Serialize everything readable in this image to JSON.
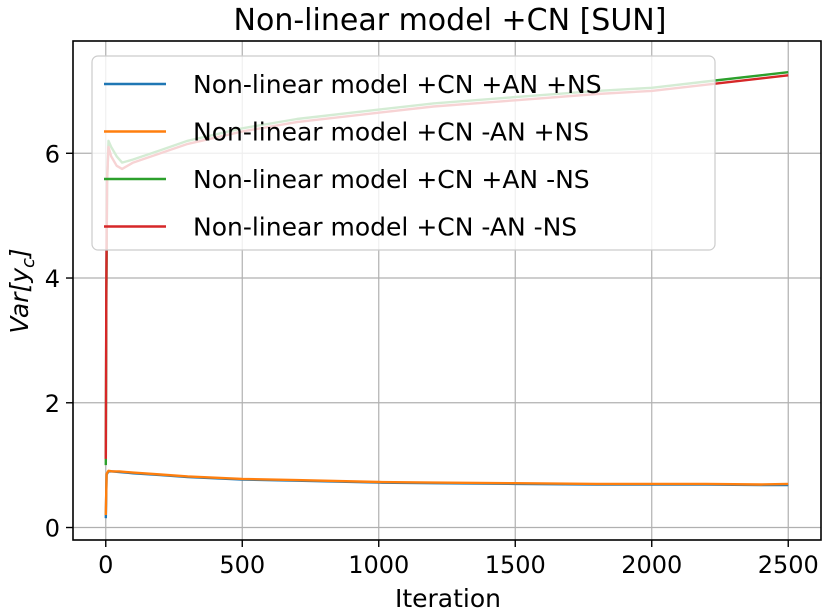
{
  "chart_data": {
    "type": "line",
    "title": "Non-linear model +CN [SUN]",
    "xlabel": "Iteration",
    "ylabel_parts": {
      "main": "Var[y",
      "sub": "c",
      "end": "]"
    },
    "xlim": [
      -120,
      2620
    ],
    "ylim": [
      -0.2,
      7.8
    ],
    "xticks": [
      0,
      500,
      1000,
      1500,
      2000,
      2500
    ],
    "yticks": [
      0,
      2,
      4,
      6
    ],
    "grid": true,
    "legend_position": "top",
    "series": [
      {
        "name": "Non-linear model +CN +AN +NS",
        "color": "#1f77b4",
        "x": [
          0,
          3,
          10,
          25,
          50,
          100,
          200,
          300,
          500,
          700,
          1000,
          1200,
          1500,
          1800,
          2000,
          2200,
          2400,
          2500
        ],
        "y": [
          0.15,
          0.85,
          0.9,
          0.9,
          0.89,
          0.87,
          0.84,
          0.81,
          0.77,
          0.75,
          0.72,
          0.71,
          0.7,
          0.69,
          0.69,
          0.69,
          0.68,
          0.68
        ]
      },
      {
        "name": "Non-linear model +CN -AN +NS",
        "color": "#ff7f0e",
        "x": [
          0,
          3,
          10,
          25,
          50,
          100,
          200,
          300,
          500,
          700,
          1000,
          1200,
          1500,
          1800,
          2000,
          2200,
          2400,
          2500
        ],
        "y": [
          0.2,
          0.86,
          0.91,
          0.9,
          0.9,
          0.88,
          0.85,
          0.82,
          0.78,
          0.76,
          0.73,
          0.72,
          0.71,
          0.7,
          0.7,
          0.7,
          0.69,
          0.7
        ]
      },
      {
        "name": "Non-linear model +CN +AN -NS",
        "color": "#2ca02c",
        "x": [
          0,
          2,
          5,
          10,
          20,
          40,
          60,
          100,
          200,
          300,
          500,
          700,
          1000,
          1200,
          1500,
          1800,
          2000,
          2200,
          2400,
          2500
        ],
        "y": [
          1.0,
          3.5,
          5.5,
          6.2,
          6.1,
          5.95,
          5.85,
          5.9,
          6.05,
          6.2,
          6.4,
          6.55,
          6.7,
          6.8,
          6.9,
          7.0,
          7.05,
          7.15,
          7.25,
          7.3
        ]
      },
      {
        "name": "Non-linear model +CN -AN -NS",
        "color": "#d62728",
        "x": [
          0,
          2,
          5,
          10,
          20,
          40,
          60,
          100,
          200,
          300,
          500,
          700,
          1000,
          1200,
          1500,
          1800,
          2000,
          2200,
          2400,
          2500
        ],
        "y": [
          1.1,
          3.8,
          5.6,
          6.1,
          5.95,
          5.8,
          5.75,
          5.85,
          6.0,
          6.15,
          6.35,
          6.5,
          6.65,
          6.75,
          6.85,
          6.95,
          7.0,
          7.1,
          7.2,
          7.25
        ]
      }
    ]
  }
}
